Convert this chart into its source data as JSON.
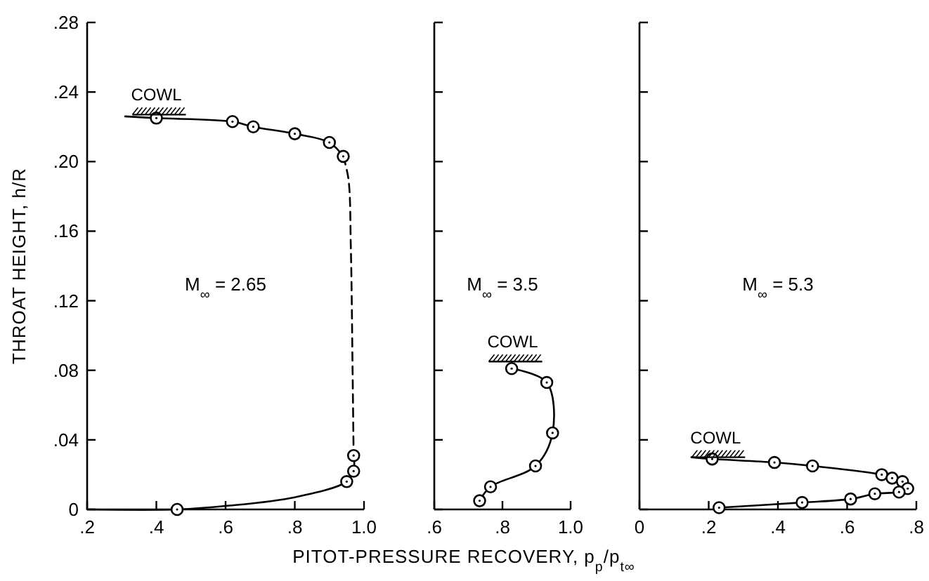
{
  "chart_data": [
    {
      "type": "line",
      "ylabel": "THROAT HEIGHT, h/R",
      "xlim": [
        0.2,
        1.0
      ],
      "ylim": [
        0,
        0.28
      ],
      "xticks": [
        {
          "value": 0.2,
          "label": ".2"
        },
        {
          "value": 0.4,
          "label": ".4"
        },
        {
          "value": 0.6,
          "label": ".6"
        },
        {
          "value": 0.8,
          "label": ".8"
        },
        {
          "value": 1.0,
          "label": "1.0"
        }
      ],
      "yticks": [
        0,
        {
          "value": 0.04,
          "label": ".04"
        },
        {
          "value": 0.08,
          "label": ".08"
        },
        {
          "value": 0.12,
          "label": ".12"
        },
        {
          "value": 0.16,
          "label": ".16"
        },
        {
          "value": 0.2,
          "label": ".20"
        },
        {
          "value": 0.24,
          "label": ".24"
        },
        {
          "value": 0.28,
          "label": ".28"
        }
      ],
      "grid": false,
      "annotations": [
        "M$_{∞}$ = 2.65",
        {
          "text": "COWL",
          "x": 0.4,
          "y": 0.227
        }
      ],
      "series": [
        {
          "color": "#000000",
          "marker": "none",
          "line_style": "solid",
          "x": [
            0.31,
            0.4,
            0.62,
            0.68,
            0.8,
            0.9,
            0.94
          ],
          "values": [
            0.226,
            0.225,
            0.223,
            0.22,
            0.216,
            0.211,
            0.203
          ]
        },
        {
          "color": "#000000",
          "marker": "none",
          "line_style": "dashed",
          "x": [
            0.94,
            0.955,
            0.962,
            0.967,
            0.97
          ],
          "values": [
            0.203,
            0.19,
            0.15,
            0.08,
            0.031
          ]
        },
        {
          "color": "#000000",
          "marker": "none",
          "line_style": "solid",
          "x": [
            0.2,
            0.46,
            0.6,
            0.8,
            0.95,
            0.97,
            0.97
          ],
          "values": [
            0,
            0,
            0.002,
            0.007,
            0.016,
            0.022,
            0.031
          ]
        },
        {
          "type": "scatter",
          "marker": "circle",
          "color": "#000000",
          "x": [
            0.4,
            0.62,
            0.68,
            0.8,
            0.9,
            0.94,
            0.97,
            0.97,
            0.95,
            0.46
          ],
          "values": [
            0.225,
            0.223,
            0.22,
            0.216,
            0.211,
            0.203,
            0.031,
            0.022,
            0.016,
            0
          ]
        }
      ]
    },
    {
      "type": "line",
      "xlabel": "PITOT-PRESSURE RECOVERY, p$_{p}$/p$_{t∞}$",
      "xlim": [
        0.6,
        1.0
      ],
      "ylim": [
        0,
        0.28
      ],
      "tick_labels": "x",
      "xticks": [
        {
          "value": 0.6,
          "label": ".6"
        },
        {
          "value": 0.8,
          "label": ".8"
        },
        {
          "value": 1.0,
          "label": "1.0"
        }
      ],
      "yticks": [
        0,
        0.04,
        0.08,
        0.12,
        0.16,
        0.2,
        0.24,
        0.28
      ],
      "grid": false,
      "annotations": [
        "M$_{∞}$ = 3.5",
        {
          "text": "COWL",
          "x": 0.83,
          "y": 0.085
        }
      ],
      "series": [
        {
          "color": "#000000",
          "marker": "none",
          "line_style": "solid",
          "x": [
            0.827,
            0.93,
            0.947,
            0.897,
            0.765,
            0.733
          ],
          "values": [
            0.081,
            0.073,
            0.044,
            0.025,
            0.013,
            0.005
          ]
        },
        {
          "type": "scatter",
          "marker": "circle",
          "color": "#000000",
          "x": [
            0.827,
            0.93,
            0.947,
            0.897,
            0.765,
            0.733
          ],
          "values": [
            0.081,
            0.073,
            0.044,
            0.025,
            0.013,
            0.005
          ]
        }
      ]
    },
    {
      "type": "line",
      "xlim": [
        0,
        0.8
      ],
      "ylim": [
        0,
        0.28
      ],
      "tick_labels": "x",
      "xticks": [
        0,
        {
          "value": 0.2,
          "label": ".2"
        },
        {
          "value": 0.4,
          "label": ".4"
        },
        {
          "value": 0.6,
          "label": ".6"
        },
        {
          "value": 0.8,
          "label": ".8"
        }
      ],
      "yticks": [
        0,
        0.04,
        0.08,
        0.12,
        0.16,
        0.2,
        0.24,
        0.28
      ],
      "grid": false,
      "annotations": [
        "M$_{∞}$ = 5.3",
        {
          "text": "COWL",
          "x": 0.22,
          "y": 0.03
        }
      ],
      "series": [
        {
          "color": "#000000",
          "marker": "none",
          "line_style": "solid",
          "x": [
            0.15,
            0.21,
            0.39,
            0.5,
            0.7,
            0.73,
            0.76,
            0.775,
            0.75,
            0.68,
            0.61,
            0.47,
            0.23
          ],
          "values": [
            0.03,
            0.029,
            0.027,
            0.025,
            0.02,
            0.018,
            0.016,
            0.012,
            0.01,
            0.009,
            0.006,
            0.004,
            0.001
          ]
        },
        {
          "type": "scatter",
          "marker": "circle",
          "color": "#000000",
          "x": [
            0.21,
            0.39,
            0.5,
            0.7,
            0.73,
            0.76,
            0.775,
            0.75,
            0.68,
            0.61,
            0.47,
            0.23
          ],
          "values": [
            0.029,
            0.027,
            0.025,
            0.02,
            0.018,
            0.016,
            0.012,
            0.01,
            0.009,
            0.006,
            0.004,
            0.001
          ]
        }
      ]
    }
  ]
}
